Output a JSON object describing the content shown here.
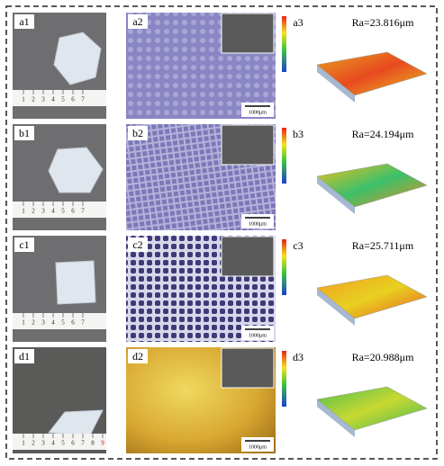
{
  "rows": [
    {
      "photo_label": "a1",
      "ruler": [
        "1",
        "2",
        "3",
        "4",
        "5",
        "6",
        "7"
      ],
      "micro_label": "a2",
      "scale_bar": "1000μm",
      "profile_label": "a3",
      "ra": "Ra=23.816μm"
    },
    {
      "photo_label": "b1",
      "ruler": [
        "1",
        "2",
        "3",
        "4",
        "5",
        "6",
        "7"
      ],
      "micro_label": "b2",
      "scale_bar": "1000μm",
      "profile_label": "b3",
      "ra": "Ra=24.194μm"
    },
    {
      "photo_label": "c1",
      "ruler": [
        "1",
        "2",
        "3",
        "4",
        "5",
        "6",
        "7"
      ],
      "micro_label": "c2",
      "scale_bar": "1000μm",
      "profile_label": "c3",
      "ra": "Ra=25.711μm"
    },
    {
      "photo_label": "d1",
      "ruler": [
        "1",
        "2",
        "3",
        "4",
        "5",
        "6",
        "7",
        "8",
        "9"
      ],
      "micro_label": "d2",
      "scale_bar": "1000μm",
      "profile_label": "d3",
      "ra": "Ra=20.988μm"
    }
  ]
}
